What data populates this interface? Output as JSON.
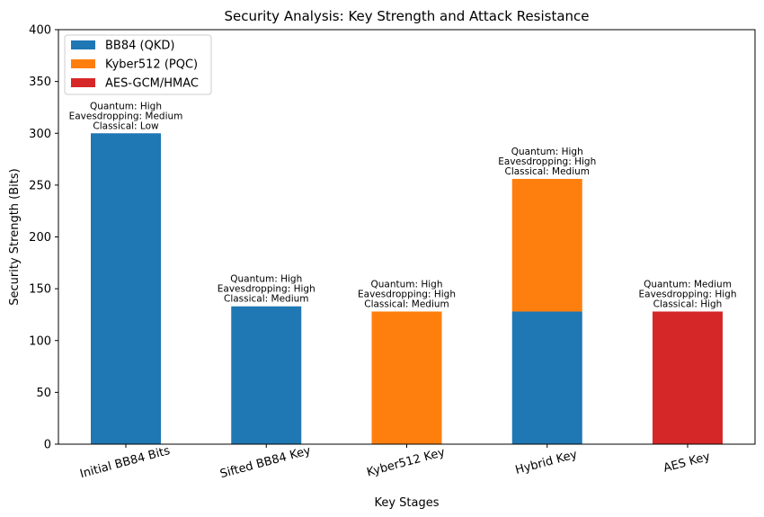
{
  "chart_data": {
    "type": "bar",
    "stacked": true,
    "title": "Security Analysis: Key Strength and Attack Resistance",
    "xlabel": "Key Stages",
    "ylabel": "Security Strength (Bits)",
    "ylim": [
      0,
      400
    ],
    "yticks": [
      0,
      50,
      100,
      150,
      200,
      250,
      300,
      350,
      400
    ],
    "grid": false,
    "legend_position": "top-left",
    "categories": [
      "Initial BB84 Bits",
      "Sifted BB84 Key",
      "Kyber512 Key",
      "Hybrid Key",
      "AES Key"
    ],
    "series": [
      {
        "name": "BB84 (QKD)",
        "color": "#1f77b4",
        "values": [
          300,
          133,
          0,
          128,
          0
        ]
      },
      {
        "name": "Kyber512 (PQC)",
        "color": "#ff7f0e",
        "values": [
          0,
          0,
          128,
          128,
          0
        ]
      },
      {
        "name": "AES-GCM/HMAC",
        "color": "#d62728",
        "values": [
          0,
          0,
          0,
          0,
          128
        ]
      }
    ],
    "annotations": [
      [
        "Quantum: High",
        "Eavesdropping: Medium",
        "Classical: Low"
      ],
      [
        "Quantum: High",
        "Eavesdropping: High",
        "Classical: Medium"
      ],
      [
        "Quantum: High",
        "Eavesdropping: High",
        "Classical: Medium"
      ],
      [
        "Quantum: High",
        "Eavesdropping: High",
        "Classical: Medium"
      ],
      [
        "Quantum: Medium",
        "Eavesdropping: High",
        "Classical: High"
      ]
    ]
  }
}
